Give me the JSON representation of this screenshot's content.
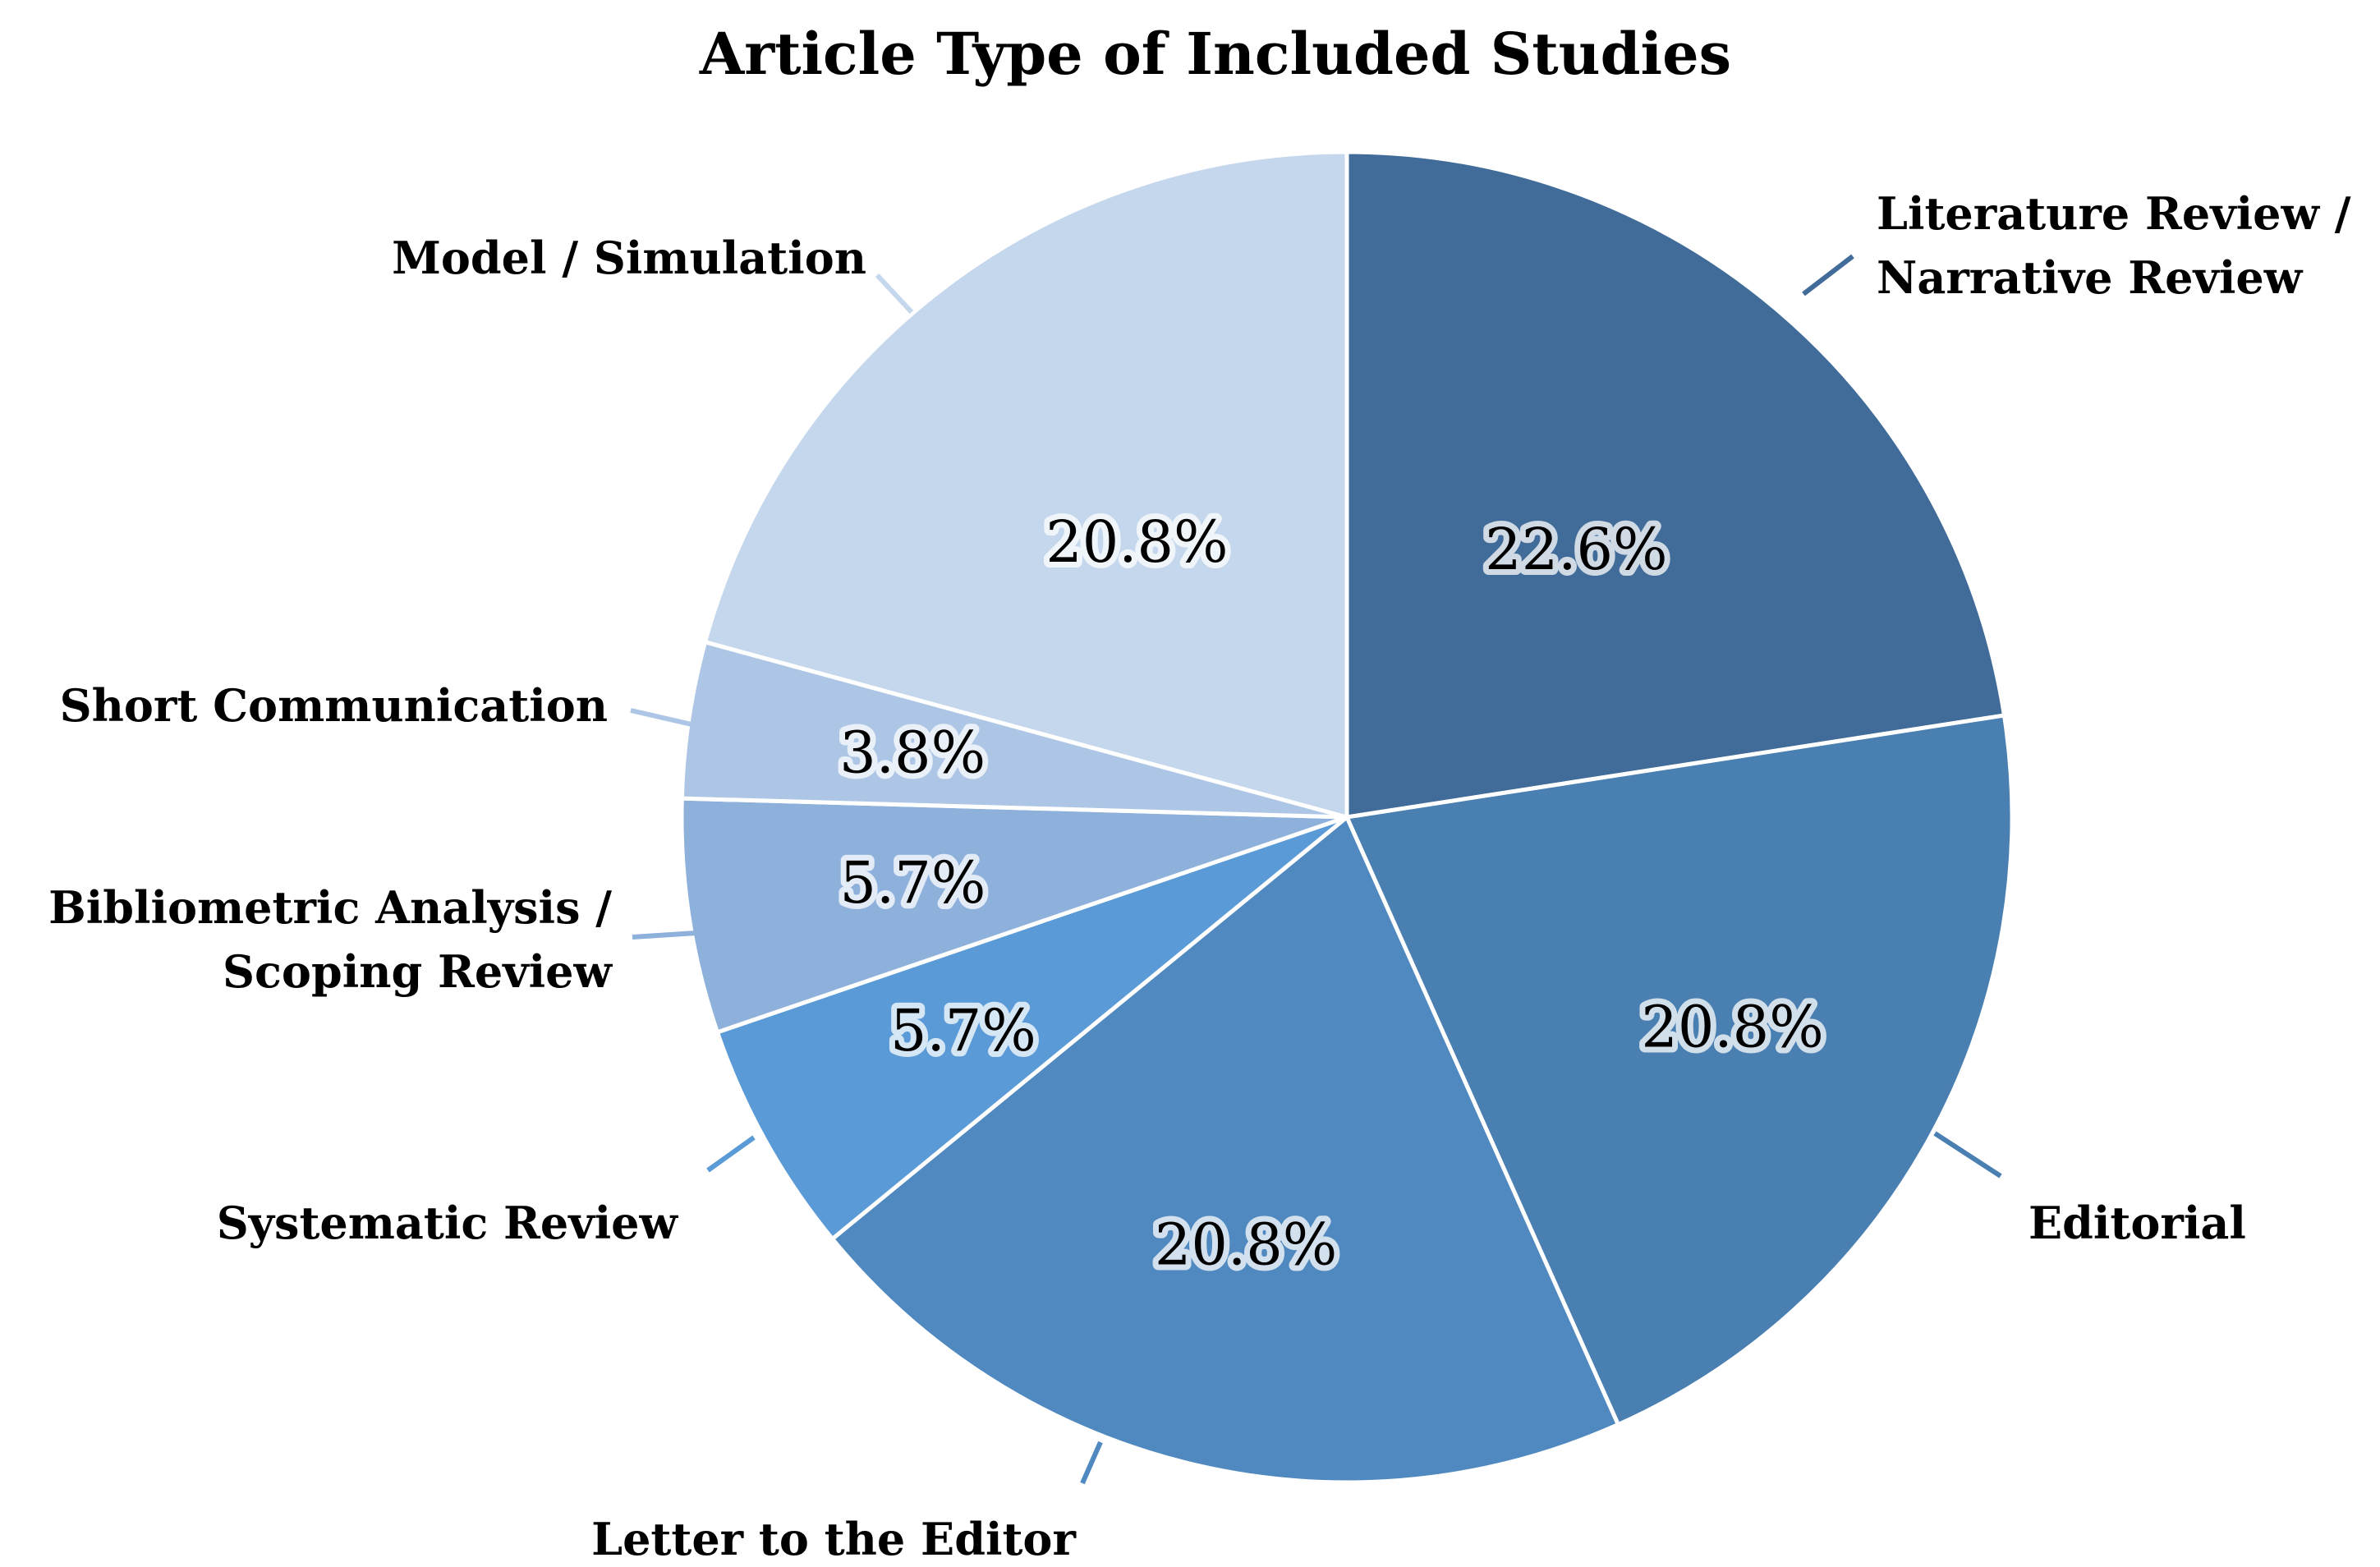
{
  "chart_data": {
    "type": "pie",
    "title": "Article Type of Included Studies",
    "start": "12 o'clock",
    "direction": "clockwise",
    "slices": [
      {
        "label_lines": [
          "Literature Review /",
          "Narrative Review"
        ],
        "value": 22.6,
        "value_label": "22.6%",
        "color": "#416c99"
      },
      {
        "label_lines": [
          "Editorial"
        ],
        "value": 20.8,
        "value_label": "20.8%",
        "color": "#4a7fb1"
      },
      {
        "label_lines": [
          "Letter to the Editor"
        ],
        "value": 20.8,
        "value_label": "20.8%",
        "color": "#5089c0"
      },
      {
        "label_lines": [
          "Systematic Review"
        ],
        "value": 5.7,
        "value_label": "5.7%",
        "color": "#5a9bd7"
      },
      {
        "label_lines": [
          "Bibliometric Analysis /",
          "Scoping Review"
        ],
        "value": 5.7,
        "value_label": "5.7%",
        "color": "#8eb1dc"
      },
      {
        "label_lines": [
          "Short Communication"
        ],
        "value": 3.8,
        "value_label": "3.8%",
        "color": "#aec6e6"
      },
      {
        "label_lines": [
          "Model / Simulation"
        ],
        "value": 20.8,
        "value_label": "20.8%",
        "color": "#c5d7ed"
      }
    ]
  }
}
